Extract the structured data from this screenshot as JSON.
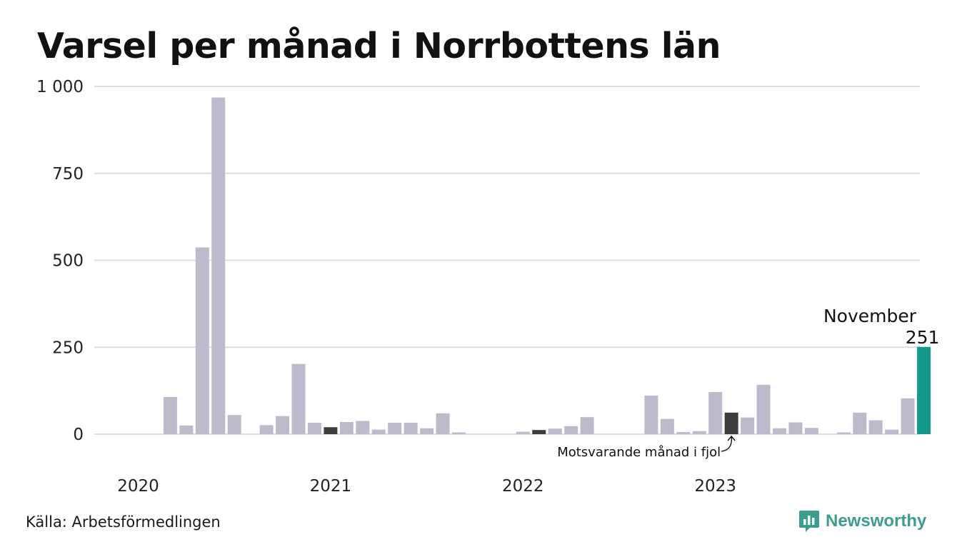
{
  "title": "Varsel per månad i Norrbottens län",
  "source": "Källa: Arbetsförmedlingen",
  "brand": {
    "name": "Newsworthy",
    "icon": "newsworthy-logo-icon"
  },
  "colors": {
    "bar": "#bdbbcb",
    "previous_year": "#3d3d3d",
    "current": "#14998a",
    "grid": "#dddddd",
    "axis_text": "#222222",
    "brand": "#3a9e8f"
  },
  "chart_data": {
    "type": "bar",
    "ylim": [
      0,
      1000
    ],
    "y_ticks": [
      0,
      250,
      500,
      750,
      1000
    ],
    "y_tick_labels": [
      "0",
      "250",
      "500",
      "750",
      "1 000"
    ],
    "grid": true,
    "x_labels": [
      {
        "label": "2020",
        "index": 0
      },
      {
        "label": "2021",
        "index": 12
      },
      {
        "label": "2022",
        "index": 24
      },
      {
        "label": "2023",
        "index": 36
      }
    ],
    "values": [
      0,
      0,
      107,
      25,
      537,
      968,
      55,
      0,
      26,
      52,
      202,
      33,
      20,
      35,
      38,
      13,
      33,
      33,
      17,
      60,
      5,
      0,
      0,
      0,
      7,
      12,
      16,
      23,
      49,
      0,
      0,
      0,
      111,
      44,
      6,
      9,
      121,
      62,
      48,
      142,
      17,
      34,
      18,
      0,
      5,
      62,
      40,
      13,
      103,
      251
    ],
    "highlight": {
      "previous_year_indices": [
        12,
        25,
        37
      ],
      "current_index": 49
    },
    "annotations": {
      "current_month": "November",
      "current_value": "251",
      "previous_year_note": "Motsvarande månad i fjol"
    }
  }
}
